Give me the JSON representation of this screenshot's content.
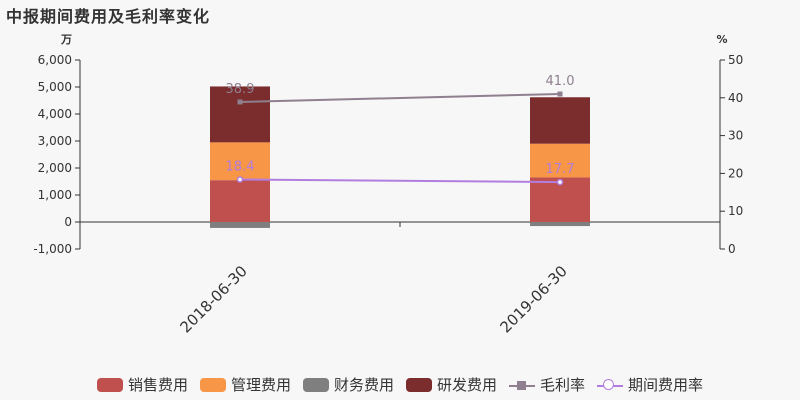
{
  "title": "中报期间费用及毛利率变化",
  "chart_data": {
    "type": "bar",
    "categories": [
      "2018-06-30",
      "2019-06-30"
    ],
    "y_left_unit": "万",
    "y_right_unit": "%",
    "y_left_ticks": [
      "-1,000",
      "0",
      "1,000",
      "2,000",
      "3,000",
      "4,000",
      "5,000",
      "6,000"
    ],
    "y_right_ticks": [
      "0",
      "10",
      "20",
      "30",
      "40",
      "50"
    ],
    "ylim_left": [
      -1000,
      6000
    ],
    "ylim_right": [
      0,
      50
    ],
    "stacked": true,
    "series": [
      {
        "name": "销售费用",
        "type": "bar",
        "values": [
          1550,
          1650
        ],
        "color": "#c0504d"
      },
      {
        "name": "管理费用",
        "type": "bar",
        "values": [
          1400,
          1250
        ],
        "color": "#f79646"
      },
      {
        "name": "财务费用",
        "type": "bar",
        "values": [
          -220,
          -150
        ],
        "color": "#7f7f7f"
      },
      {
        "name": "研发费用",
        "type": "bar",
        "values": [
          2070,
          1720
        ],
        "color": "#7b2c2c"
      },
      {
        "name": "毛利率",
        "type": "line",
        "axis": "right",
        "values": [
          38.9,
          41.0
        ],
        "labels": [
          "38.9",
          "41.0"
        ],
        "color": "#8f7f8f",
        "marker": "square"
      },
      {
        "name": "期间费用率",
        "type": "line",
        "axis": "right",
        "values": [
          18.4,
          17.7
        ],
        "labels": [
          "18.4",
          "17.7"
        ],
        "color": "#b17ee0",
        "marker": "circle"
      }
    ],
    "legend_position": "bottom"
  }
}
